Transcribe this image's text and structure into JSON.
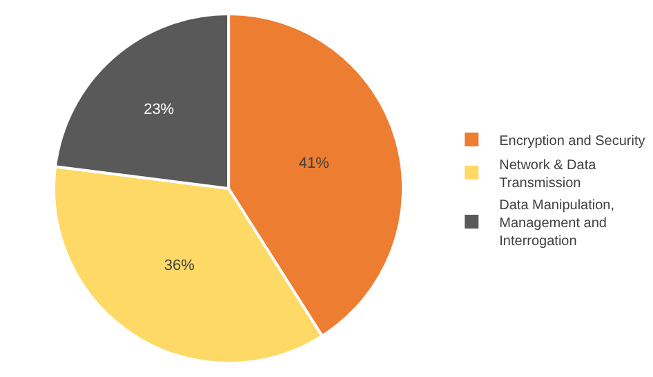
{
  "chart_data": {
    "type": "pie",
    "categories": [
      "Encryption and Security",
      "Network & Data Transmission",
      "Data Manipulation, Management and Interrogation"
    ],
    "values": [
      41,
      36,
      23
    ],
    "colors": [
      "#ed7d31",
      "#ffd966",
      "#595959"
    ],
    "value_labels": [
      "41%",
      "36%",
      "23%"
    ],
    "legend": "right"
  }
}
